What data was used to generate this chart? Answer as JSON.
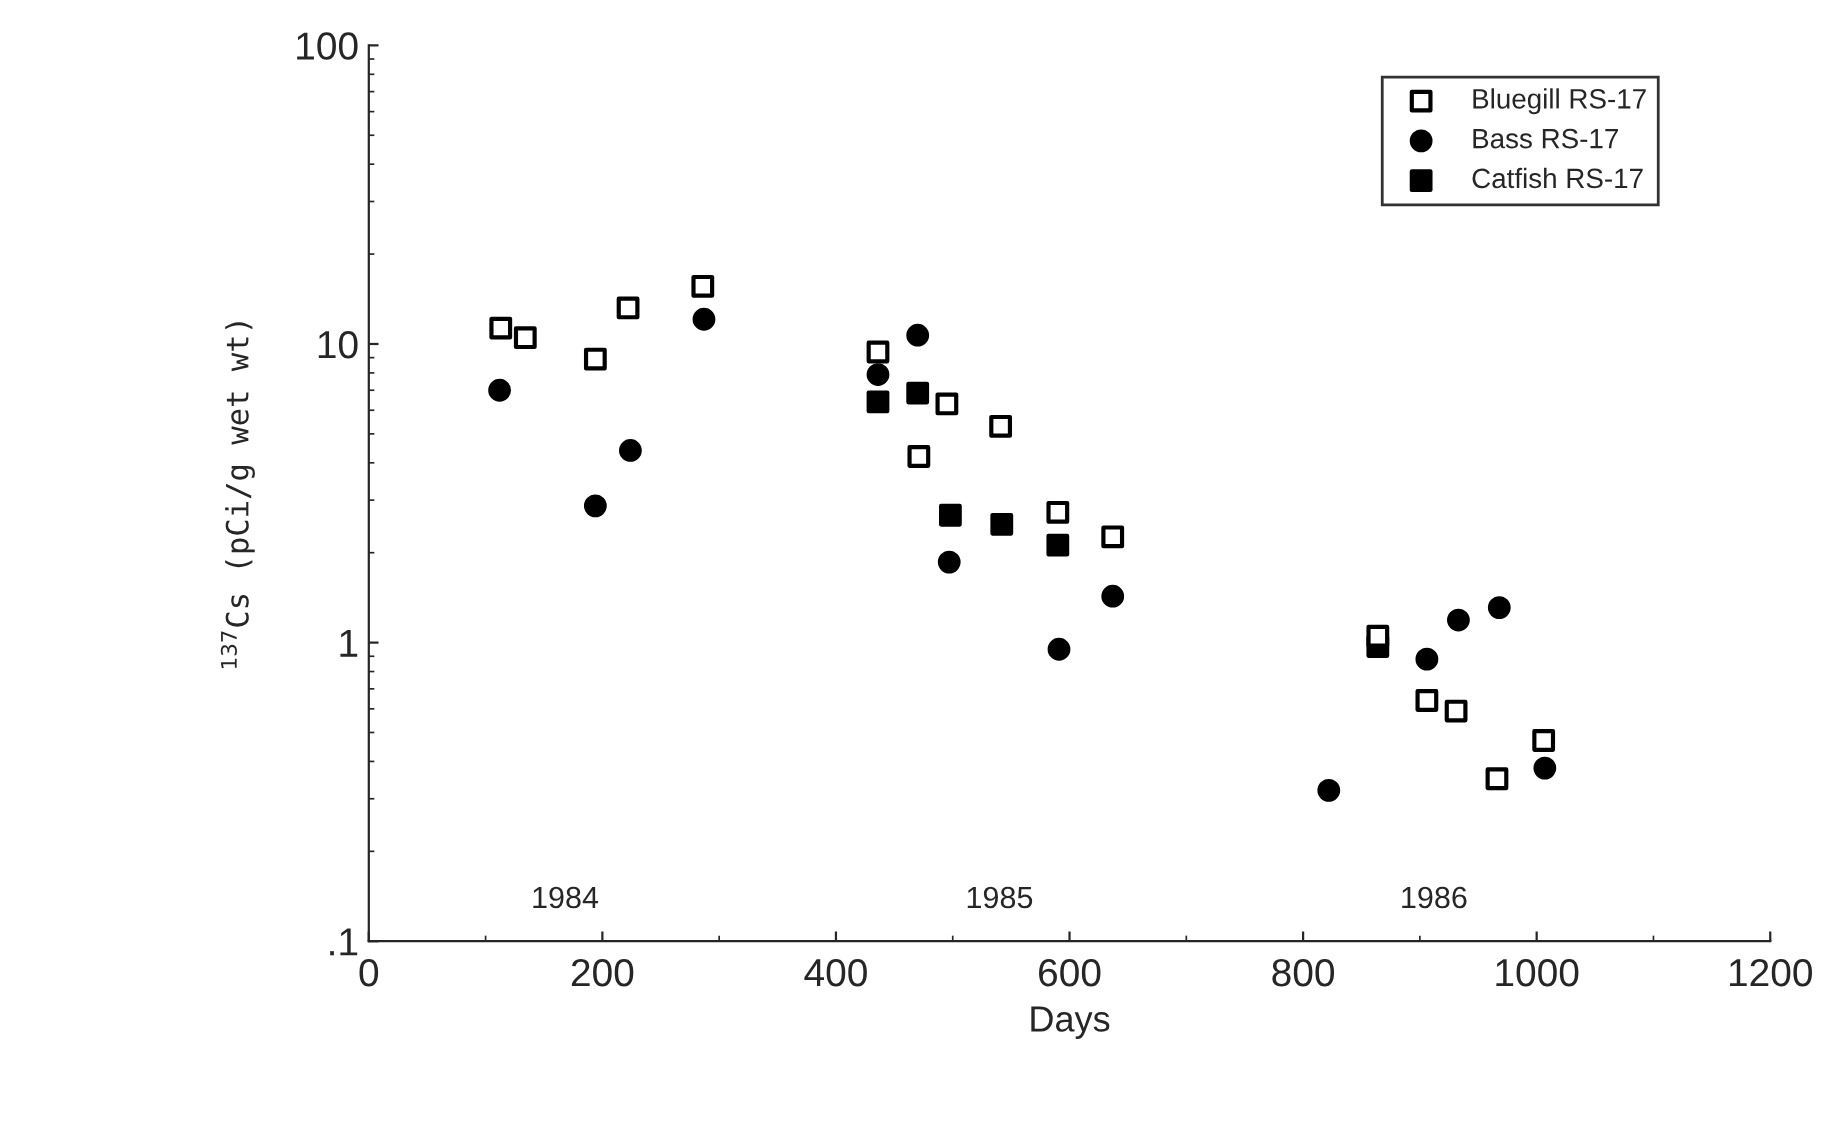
{
  "chart_data": {
    "type": "scatter",
    "xlabel": "Days",
    "ylabel": "$^{137}$Cs (pCi/g wet wt)",
    "xlim": [
      0,
      1200
    ],
    "xticks": [
      0,
      200,
      400,
      600,
      800,
      1000,
      1200
    ],
    "ylim": [
      0.1,
      100
    ],
    "yticks": [
      100,
      10,
      1,
      {
        "value": 0.1,
        "label": ".1"
      }
    ],
    "log": true,
    "grid": false,
    "legend": "top right",
    "annotations": [
      "1984",
      "1985",
      "1986"
    ],
    "series": [
      {
        "name": "Bluegill RS-17",
        "color": "#000000",
        "marker": "square_open",
        "x": [
          113,
          134,
          194,
          222,
          286,
          436,
          495,
          541,
          471,
          637,
          590,
          864,
          906,
          931,
          1006,
          966
        ],
        "values": [
          11.3,
          10.5,
          8.9,
          13.2,
          15.6,
          9.4,
          6.3,
          5.3,
          4.2,
          2.26,
          2.73,
          1.05,
          0.64,
          0.59,
          0.47,
          0.35
        ]
      },
      {
        "name": "Bass RS-17",
        "color": "#000000",
        "marker": "circle",
        "x": [
          112,
          194,
          224,
          287,
          470,
          436,
          497,
          637,
          591,
          822,
          906,
          933,
          968,
          1007
        ],
        "values": [
          7.0,
          2.87,
          4.4,
          12.1,
          10.7,
          7.9,
          1.86,
          1.43,
          0.95,
          0.32,
          0.88,
          1.19,
          1.31,
          0.38
        ]
      },
      {
        "name": "Catfish RS-17",
        "color": "#000000",
        "marker": "square",
        "x": [
          436,
          470,
          498,
          542,
          590,
          864
        ],
        "values": [
          6.4,
          6.85,
          2.67,
          2.49,
          2.12,
          0.97
        ]
      }
    ]
  }
}
